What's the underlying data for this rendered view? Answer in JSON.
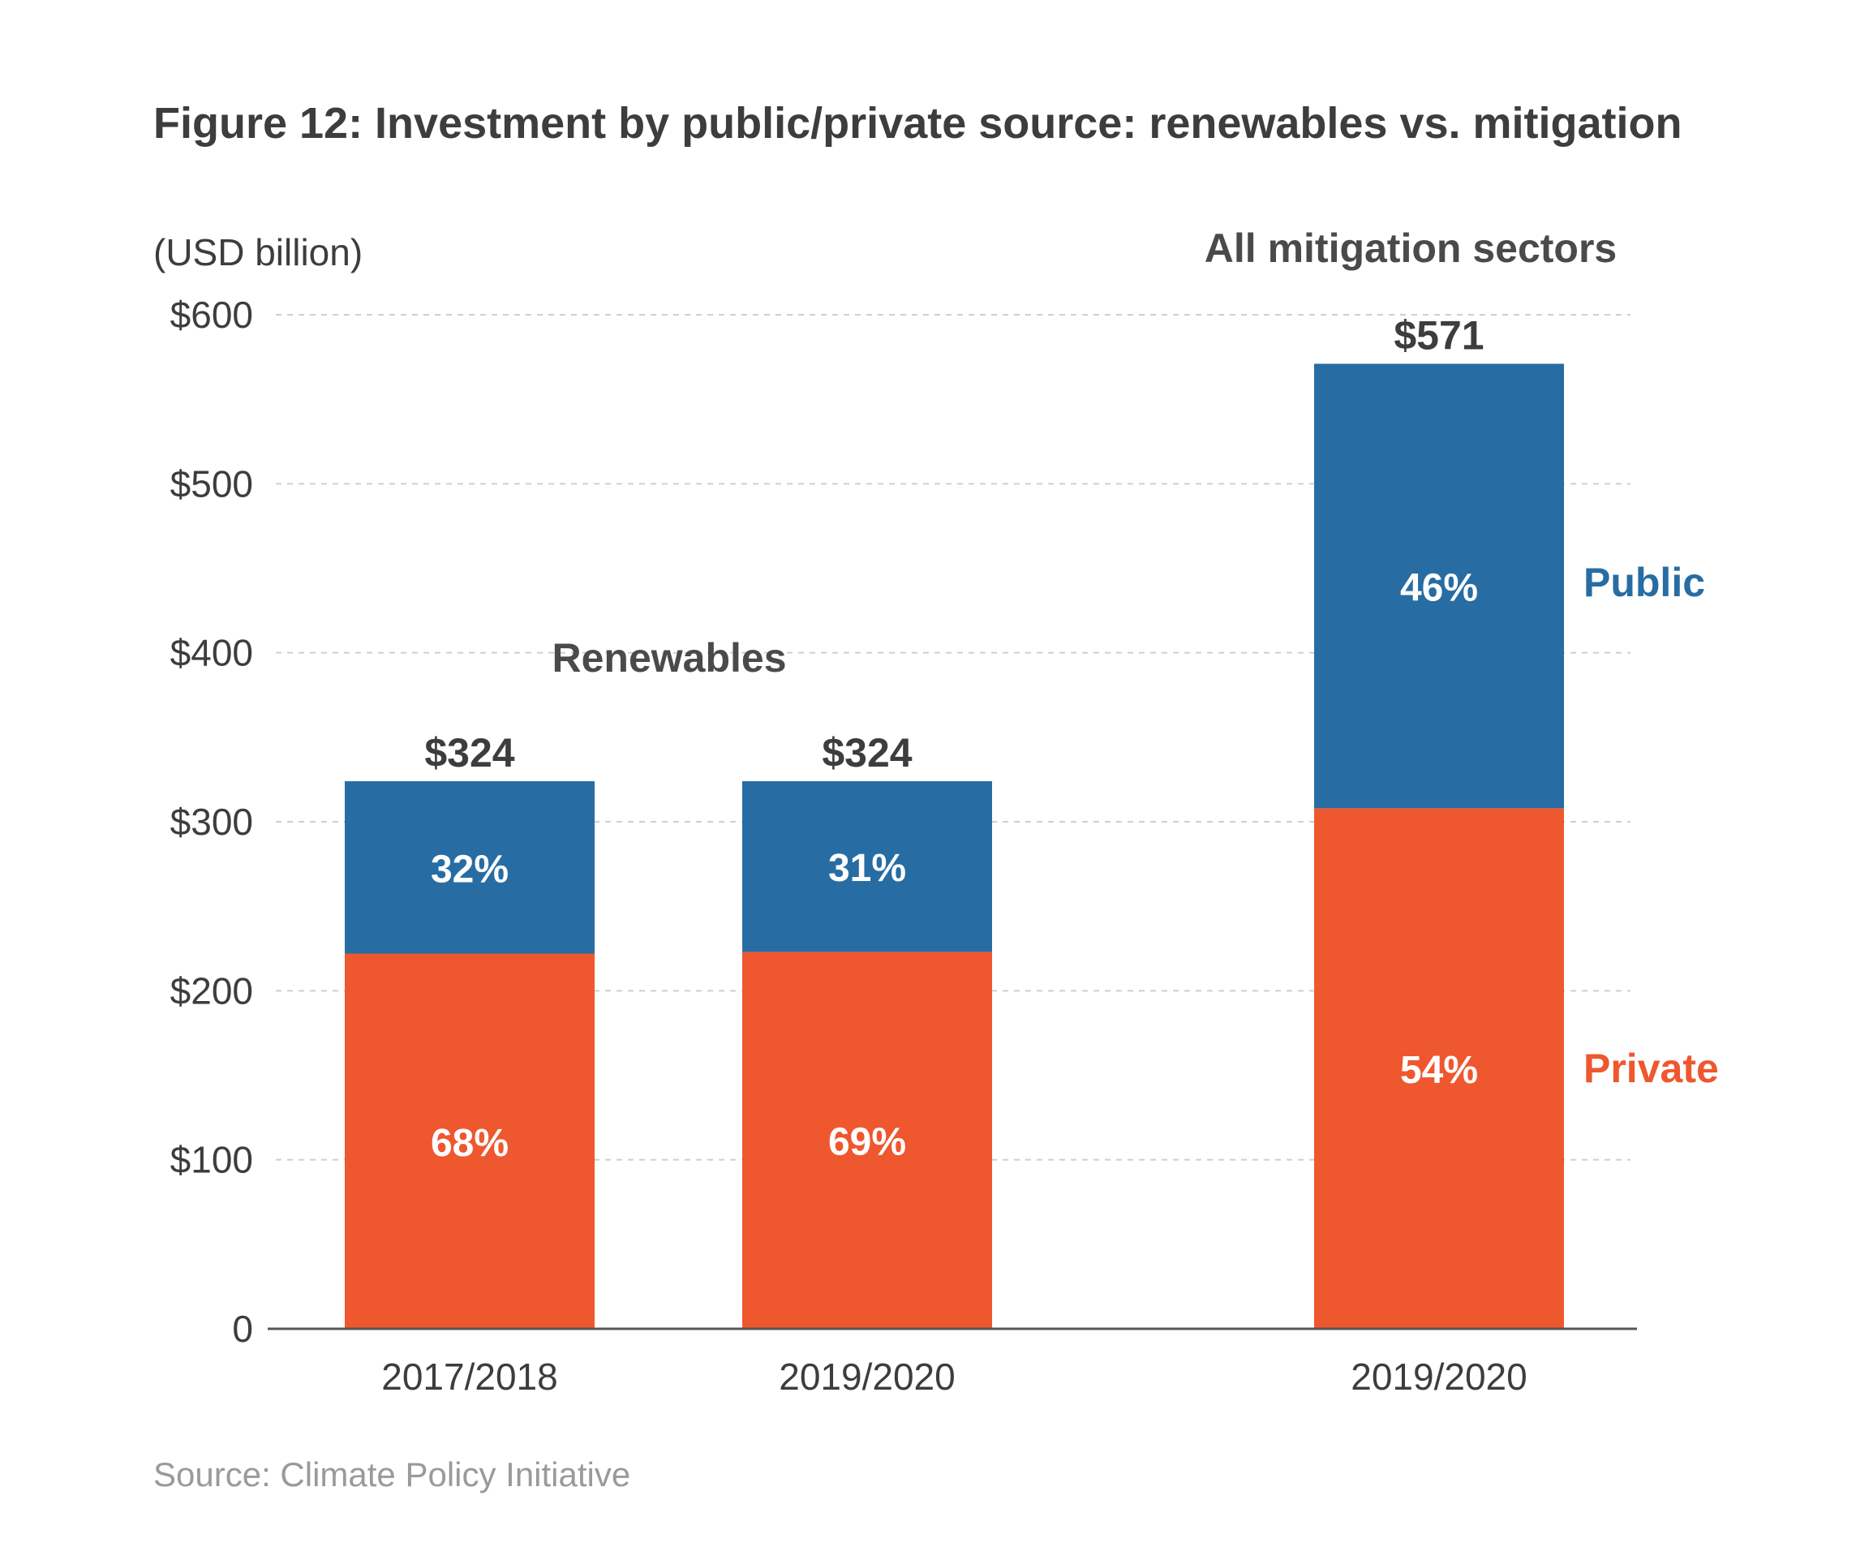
{
  "title": "Figure 12: Investment by public/private source: renewables vs. mitigation",
  "unit_label": "(USD billion)",
  "source": "Source: Climate Policy Initiative",
  "colors": {
    "public": "#276da3",
    "private": "#ef572f"
  },
  "chart_data": {
    "type": "bar",
    "stacked": true,
    "title": "Figure 12: Investment by public/private source: renewables vs. mitigation",
    "ylabel": "(USD billion)",
    "ylim": [
      0,
      600
    ],
    "yticks": [
      0,
      100,
      200,
      300,
      400,
      500,
      600
    ],
    "ytick_labels": [
      "0",
      "$100",
      "$200",
      "$300",
      "$400",
      "$500",
      "$600"
    ],
    "grid": true,
    "groups": [
      "Renewables",
      "All mitigation sectors"
    ],
    "categories": [
      "2017/2018",
      "2019/2020",
      "2019/2020"
    ],
    "category_groups": [
      "Renewables",
      "Renewables",
      "All mitigation sectors"
    ],
    "totals": [
      324,
      324,
      571
    ],
    "total_labels": [
      "$324",
      "$324",
      "$571"
    ],
    "series": [
      {
        "name": "Private",
        "values": [
          222,
          223,
          308
        ],
        "share_labels": [
          "68%",
          "69%",
          "54%"
        ]
      },
      {
        "name": "Public",
        "values": [
          102,
          101,
          263
        ],
        "share_labels": [
          "32%",
          "31%",
          "46%"
        ]
      }
    ],
    "legend": [
      "Public",
      "Private"
    ],
    "legend_position": "right"
  }
}
